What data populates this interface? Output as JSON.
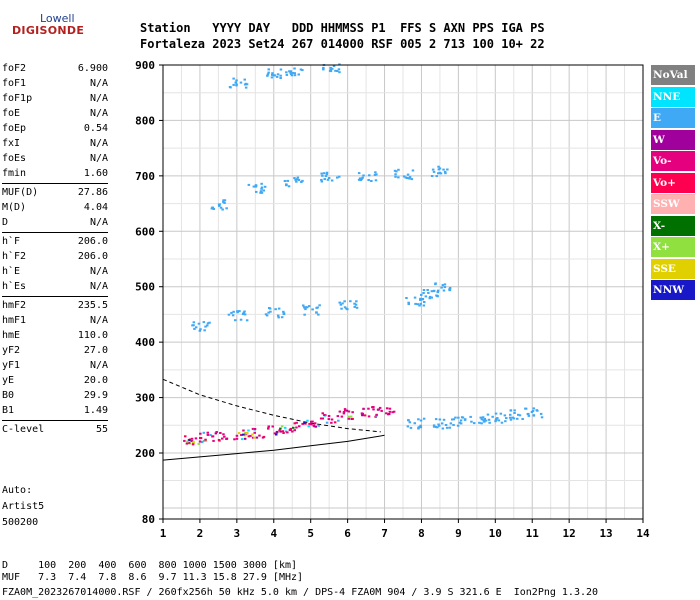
{
  "logo": {
    "brand": "Lowell",
    "name": "DIGISONDE"
  },
  "header": {
    "line1": "Station   YYYY DAY   DDD HHMMSS P1  FFS S AXN PPS IGA PS",
    "line2": "Fortaleza 2023 Set24 267 014000 RSF 005 2 713 100 10+ 22"
  },
  "params": [
    {
      "key": "foF2",
      "value": "6.900"
    },
    {
      "key": "foF1",
      "value": "N/A"
    },
    {
      "key": "foF1p",
      "value": "N/A"
    },
    {
      "key": "foE",
      "value": "N/A"
    },
    {
      "key": "foEp",
      "value": "0.54"
    },
    {
      "key": "fxI",
      "value": "N/A"
    },
    {
      "key": "foEs",
      "value": "N/A"
    },
    {
      "key": "fmin",
      "value": "1.60"
    },
    {
      "key": "MUF(D)",
      "value": "27.86"
    },
    {
      "key": "M(D)",
      "value": "4.04"
    },
    {
      "key": "D",
      "value": "N/A"
    },
    {
      "key": "h`F",
      "value": "206.0"
    },
    {
      "key": "h`F2",
      "value": "206.0"
    },
    {
      "key": "h`E",
      "value": "N/A"
    },
    {
      "key": "h`Es",
      "value": "N/A"
    },
    {
      "key": "hmF2",
      "value": "235.5"
    },
    {
      "key": "hmF1",
      "value": "N/A"
    },
    {
      "key": "hmE",
      "value": "110.0"
    },
    {
      "key": "yF2",
      "value": "27.0"
    },
    {
      "key": "yF1",
      "value": "N/A"
    },
    {
      "key": "yE",
      "value": "20.0"
    },
    {
      "key": "B0",
      "value": "29.9"
    },
    {
      "key": "B1",
      "value": "1.49"
    },
    {
      "key": "C-level",
      "value": "55"
    }
  ],
  "autoscale": {
    "label": "Auto:",
    "name": "Artist5",
    "code": "500200"
  },
  "legend": [
    {
      "label": "NoVal",
      "color": "#808080"
    },
    {
      "label": "NNE",
      "color": "#00e5ff"
    },
    {
      "label": "E",
      "color": "#3fa9f5"
    },
    {
      "label": "W",
      "color": "#a0009b"
    },
    {
      "label": "Vo-",
      "color": "#e5007e"
    },
    {
      "label": "Vo+",
      "color": "#ff0050"
    },
    {
      "label": "SSW",
      "color": "#ffb0b0"
    },
    {
      "label": "X-",
      "color": "#007000"
    },
    {
      "label": "X+",
      "color": "#90e040"
    },
    {
      "label": "SSE",
      "color": "#e0d000"
    },
    {
      "label": "NNW",
      "color": "#1818c8"
    }
  ],
  "bottom": {
    "d_row": "D     100  200  400  600  800 1000 1500 3000 [km]",
    "muf_row": "MUF   7.3  7.4  7.8  8.6  9.7 11.3 15.8 27.9 [MHz]",
    "footer": "FZA0M_2023267014000.RSF / 260fx256h 50 kHz 5.0 km / DPS-4 FZA0M 904 / 3.9 S 321.6 E  Ion2Png 1.3.20"
  },
  "chart_data": {
    "type": "scatter",
    "xlim": [
      1,
      14
    ],
    "ylim": [
      80,
      900
    ],
    "x_ticks": [
      1,
      2,
      3,
      4,
      5,
      6,
      7,
      8,
      9,
      10,
      11,
      12,
      13,
      14
    ],
    "y_ticks": [
      80,
      200,
      300,
      400,
      500,
      600,
      700,
      800,
      900
    ],
    "grid": true,
    "traces": [
      {
        "name": "O-trace F2 lower",
        "color_key": "Vo-",
        "points": [
          [
            1.7,
            225
          ],
          [
            2.0,
            230
          ],
          [
            2.5,
            232
          ],
          [
            3.0,
            235
          ],
          [
            3.5,
            238
          ],
          [
            4.0,
            242
          ],
          [
            4.5,
            248
          ],
          [
            5.0,
            258
          ],
          [
            5.5,
            265
          ],
          [
            6.0,
            272
          ],
          [
            6.5,
            276
          ],
          [
            7.0,
            278
          ]
        ]
      },
      {
        "name": "E-trace east",
        "color_key": "E",
        "points": [
          [
            7.8,
            255
          ],
          [
            8.5,
            255
          ],
          [
            9.0,
            258
          ],
          [
            9.5,
            262
          ],
          [
            10.0,
            265
          ],
          [
            10.5,
            270
          ],
          [
            11.0,
            275
          ]
        ]
      },
      {
        "name": "second hop",
        "color_key": "E",
        "points": [
          [
            2.0,
            430
          ],
          [
            3.0,
            450
          ],
          [
            4.0,
            455
          ],
          [
            5.0,
            460
          ],
          [
            6.0,
            470
          ]
        ]
      },
      {
        "name": "second hop upper",
        "color_key": "E",
        "points": [
          [
            7.8,
            475
          ],
          [
            8.2,
            490
          ],
          [
            8.5,
            500
          ]
        ]
      },
      {
        "name": "third hop",
        "color_key": "E",
        "points": [
          [
            2.5,
            650
          ],
          [
            3.5,
            680
          ],
          [
            4.5,
            690
          ],
          [
            5.5,
            700
          ],
          [
            6.5,
            700
          ],
          [
            7.5,
            705
          ],
          [
            8.5,
            710
          ]
        ]
      },
      {
        "name": "fourth hop",
        "color_key": "E",
        "points": [
          [
            3.0,
            870
          ],
          [
            4.0,
            885
          ],
          [
            4.5,
            890
          ],
          [
            5.5,
            895
          ]
        ]
      }
    ],
    "profile_curves": [
      {
        "name": "dashed",
        "style": "dashed",
        "points": [
          [
            1,
            333
          ],
          [
            2,
            305
          ],
          [
            3,
            285
          ],
          [
            4,
            268
          ],
          [
            5,
            254
          ],
          [
            6,
            244
          ],
          [
            6.9,
            238
          ]
        ]
      },
      {
        "name": "solid",
        "style": "solid",
        "points": [
          [
            1,
            187
          ],
          [
            2,
            193
          ],
          [
            3,
            199
          ],
          [
            4,
            205
          ],
          [
            5,
            213
          ],
          [
            6,
            221
          ],
          [
            7,
            232
          ]
        ]
      }
    ]
  }
}
